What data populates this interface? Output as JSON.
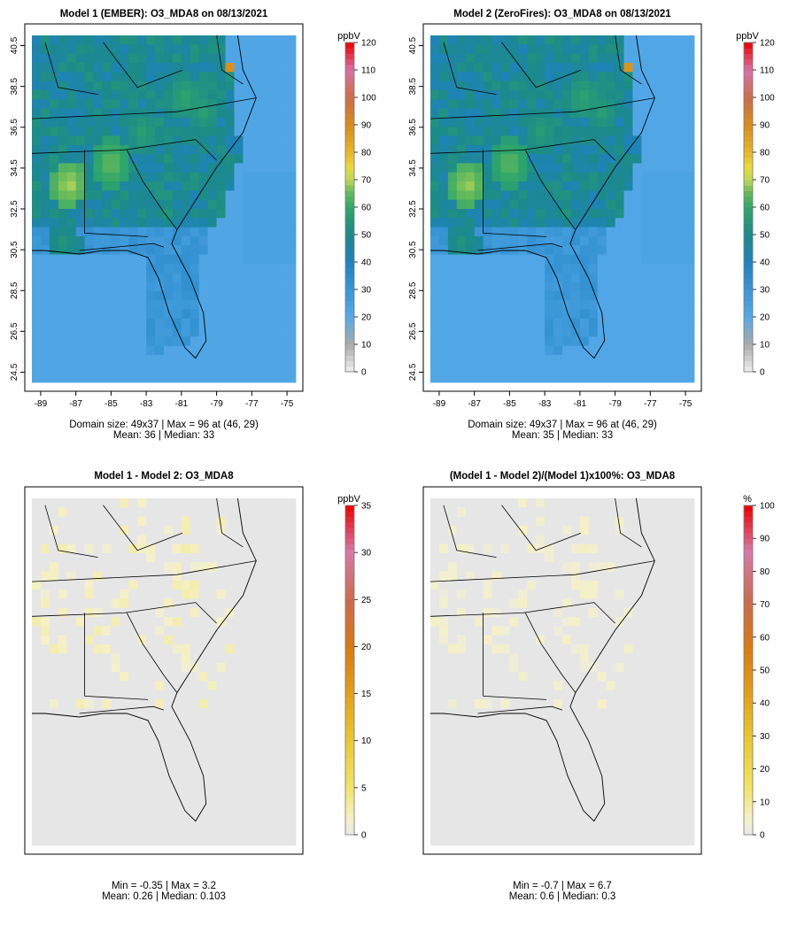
{
  "panels": [
    {
      "id": "p1",
      "title": "Model 1 (EMBER): O3_MDA8 on 08/13/2021",
      "stats": [
        "Domain size: 49x37 | Max = 96 at (46, 29)",
        "Mean: 36 |  Median: 33"
      ],
      "show_axes": true,
      "map_type": "conc",
      "colorbar": {
        "unit": "ppbV",
        "min": 0,
        "max": 120,
        "ticks": [
          0,
          10,
          20,
          30,
          40,
          50,
          60,
          70,
          80,
          90,
          100,
          110,
          120
        ]
      }
    },
    {
      "id": "p2",
      "title": "Model 2 (ZeroFires): O3_MDA8 on 08/13/2021",
      "stats": [
        "Domain size: 49x37 | Max = 96 at (46, 29)",
        "Mean: 35 |  Median: 33"
      ],
      "show_axes": true,
      "map_type": "conc",
      "colorbar": {
        "unit": "ppbV",
        "min": 0,
        "max": 120,
        "ticks": [
          0,
          10,
          20,
          30,
          40,
          50,
          60,
          70,
          80,
          90,
          100,
          110,
          120
        ]
      }
    },
    {
      "id": "p3",
      "title": "Model 1 - Model 2: O3_MDA8",
      "stats": [
        "Min = -0.35 | Max = 3.2",
        "Mean: 0.26 |  Median: 0.103"
      ],
      "show_axes": false,
      "map_type": "diff",
      "colorbar": {
        "unit": "ppbV",
        "min": 0,
        "max": 35,
        "ticks": [
          0,
          5,
          10,
          15,
          20,
          25,
          30,
          35
        ]
      }
    },
    {
      "id": "p4",
      "title": "(Model 1 - Model 2)/(Model 1)x100%: O3_MDA8",
      "stats": [
        "Min = -0.7 | Max = 6.7",
        "Mean: 0.6 |  Median: 0.3"
      ],
      "show_axes": false,
      "map_type": "pct",
      "colorbar": {
        "unit": "%",
        "min": 0,
        "max": 100,
        "ticks": [
          0,
          10,
          20,
          30,
          40,
          50,
          60,
          70,
          80,
          90,
          100
        ]
      }
    }
  ],
  "axes": {
    "x_ticks": [
      -89,
      -87,
      -85,
      -83,
      -81,
      -79,
      -77,
      -75
    ],
    "y_ticks": [
      24.5,
      26.5,
      28.5,
      30.5,
      32.5,
      34.5,
      36.5,
      38.5,
      40.5
    ],
    "xlim": [
      -89.5,
      -74.5
    ],
    "ylim": [
      24.0,
      41.0
    ]
  },
  "chart_data": [
    {
      "type": "heatmap",
      "title": "Model 1 (EMBER): O3_MDA8 on 08/13/2021",
      "unit": "ppbV",
      "grid_size": "49x37",
      "max": 96,
      "max_at": [
        46,
        29
      ],
      "mean": 36,
      "median": 33,
      "color_range": [
        0,
        120
      ],
      "xlim": [
        -89,
        -75
      ],
      "ylim": [
        24.5,
        40.5
      ]
    },
    {
      "type": "heatmap",
      "title": "Model 2 (ZeroFires): O3_MDA8 on 08/13/2021",
      "unit": "ppbV",
      "grid_size": "49x37",
      "max": 96,
      "max_at": [
        46,
        29
      ],
      "mean": 35,
      "median": 33,
      "color_range": [
        0,
        120
      ],
      "xlim": [
        -89,
        -75
      ],
      "ylim": [
        24.5,
        40.5
      ]
    },
    {
      "type": "heatmap",
      "title": "Model 1 - Model 2: O3_MDA8",
      "unit": "ppbV",
      "min": -0.35,
      "max": 3.2,
      "mean": 0.26,
      "median": 0.103,
      "color_range": [
        0,
        35
      ]
    },
    {
      "type": "heatmap",
      "title": "(Model 1 - Model 2)/(Model 1)x100%: O3_MDA8",
      "unit": "%",
      "min": -0.7,
      "max": 6.7,
      "mean": 0.6,
      "median": 0.3,
      "color_range": [
        0,
        100
      ]
    }
  ]
}
